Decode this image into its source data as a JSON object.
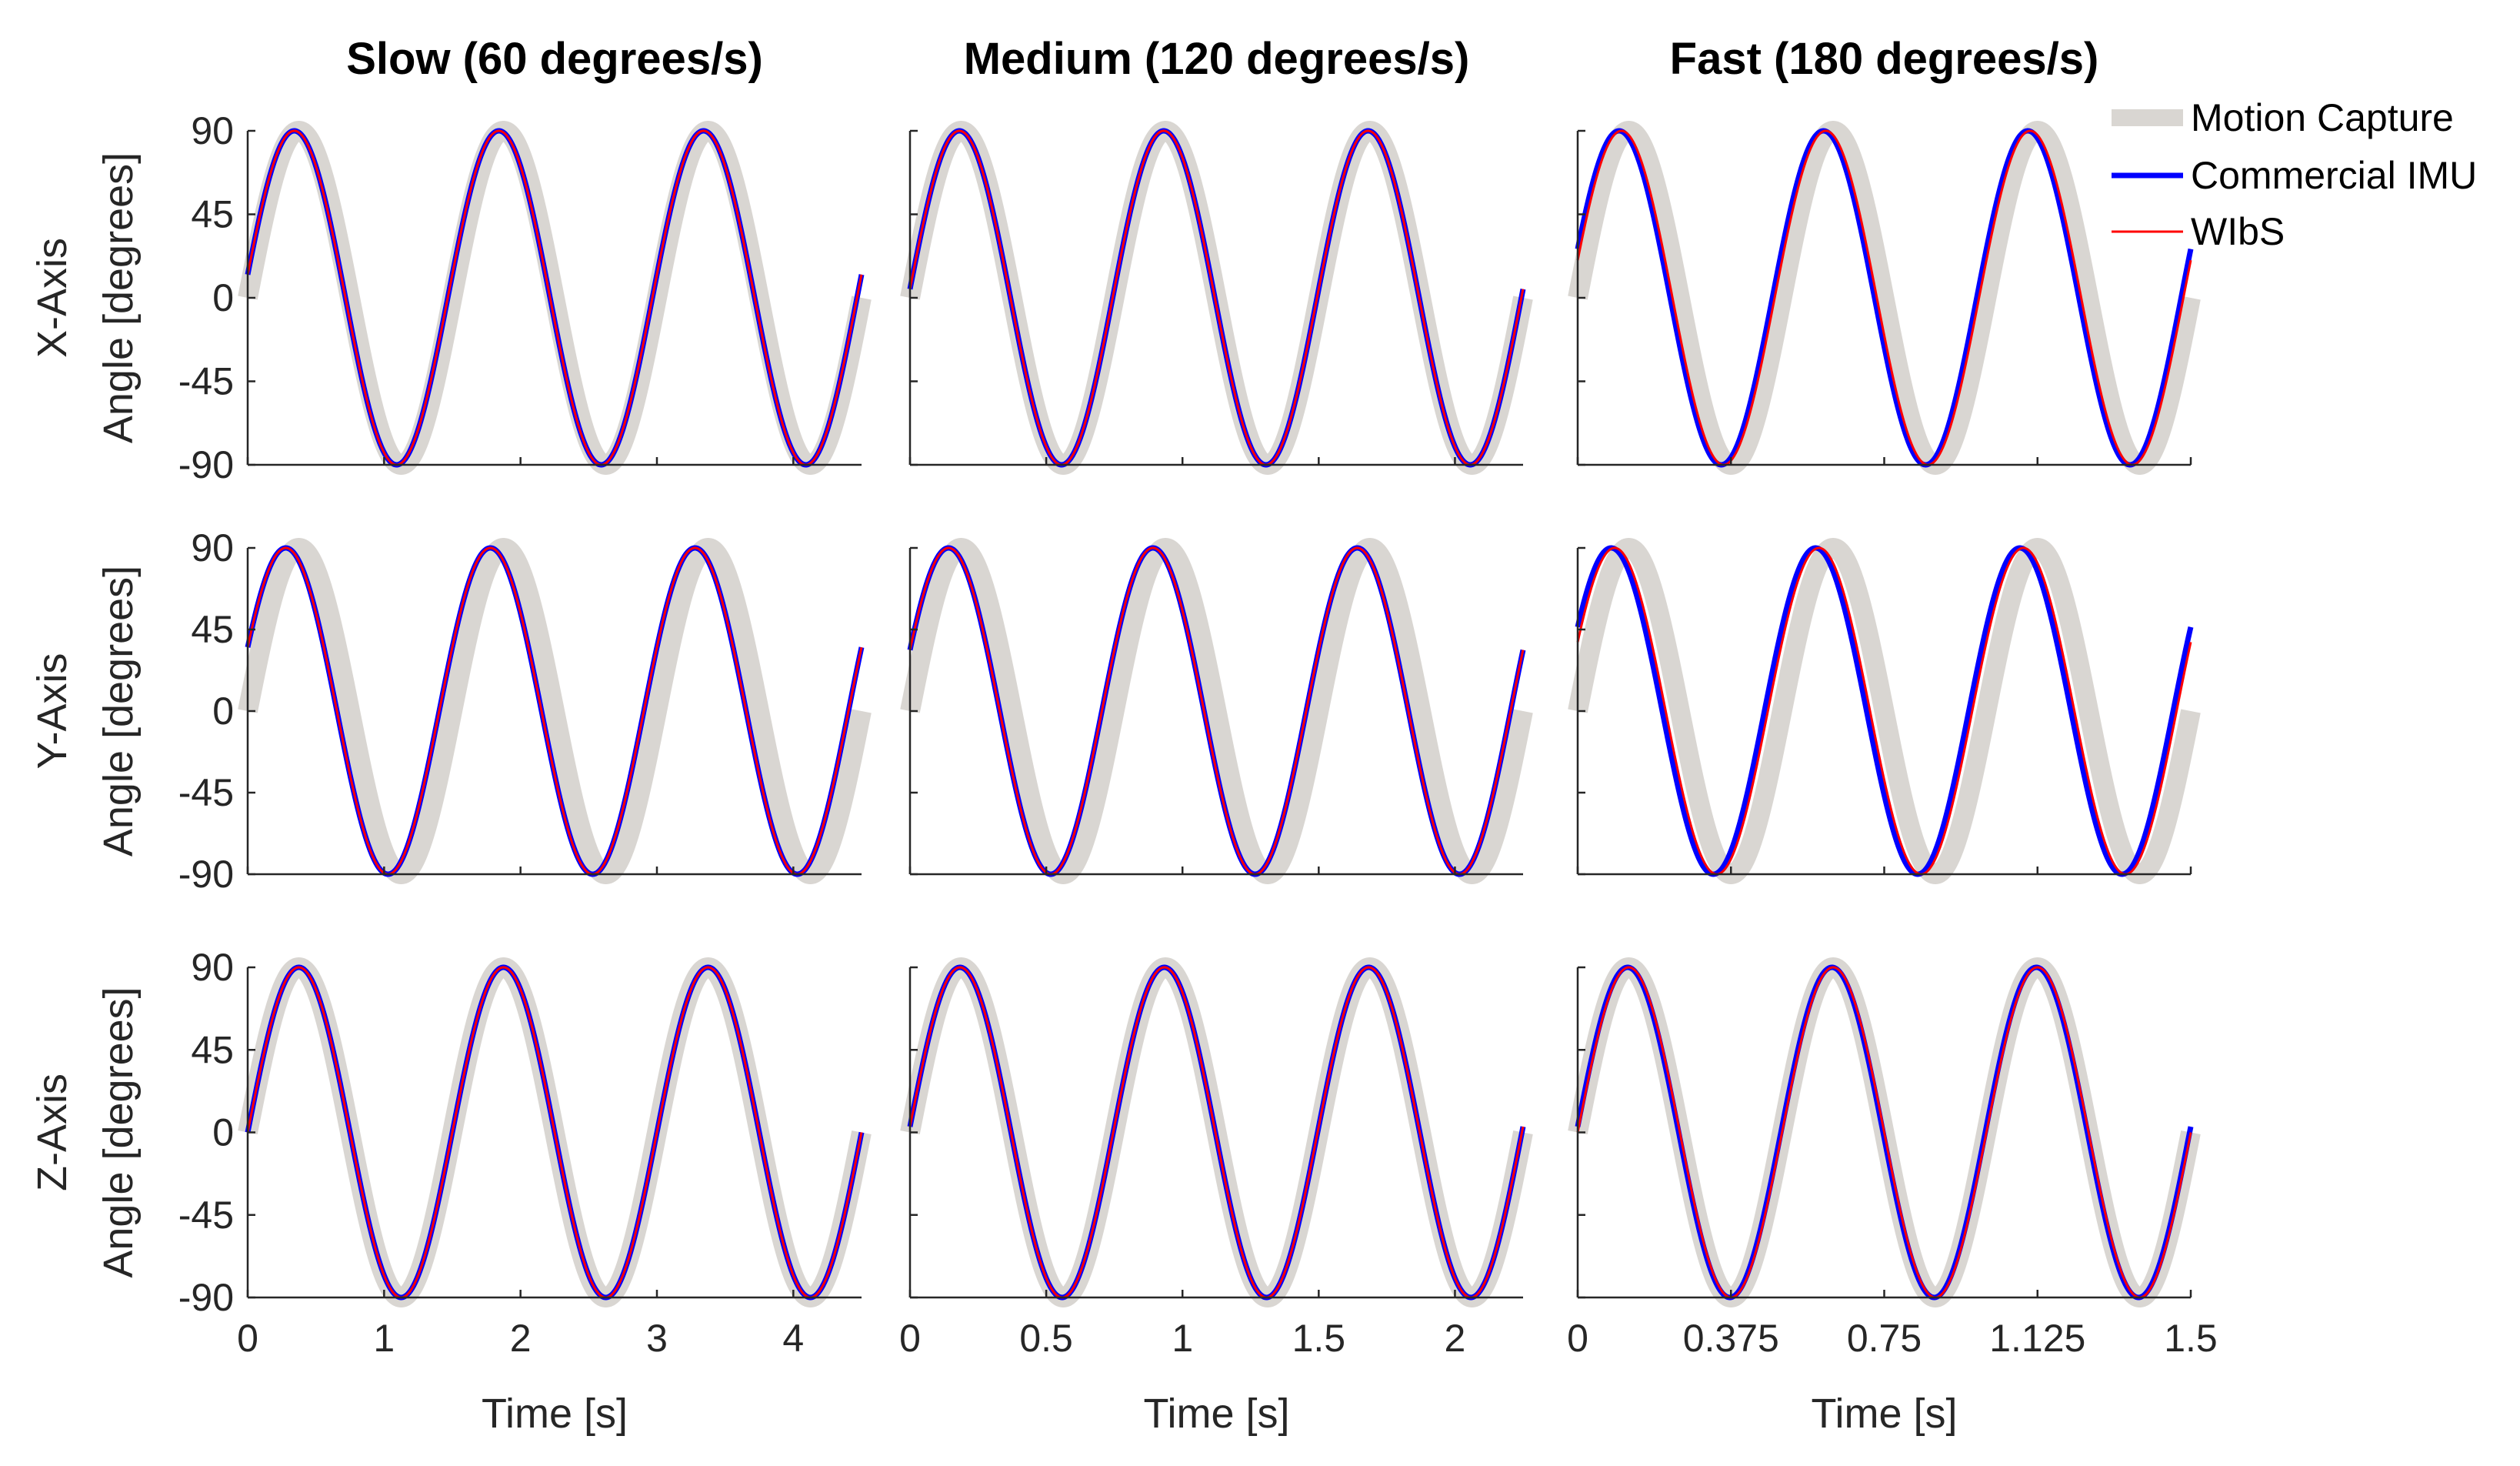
{
  "chart_data": {
    "type": "line",
    "layout": "3x3 grid of line plots",
    "column_titles": [
      "Slow (60 degrees/s)",
      "Medium (120 degrees/s)",
      "Fast (180 degrees/s)"
    ],
    "row_labels": [
      "X-Axis",
      "Y-Axis",
      "Z-Axis"
    ],
    "ylabel": "Angle [degrees]",
    "xlabel": "Time [s]",
    "ylim": [
      -90,
      90
    ],
    "yticks": [
      90,
      45,
      0,
      -45,
      -90
    ],
    "columns": [
      {
        "xlim": [
          0,
          4.5
        ],
        "xticks": [
          0,
          1,
          2,
          3,
          4
        ],
        "xtick_labels": [
          "0",
          "1",
          "2",
          "3",
          "4"
        ],
        "period": 1.5
      },
      {
        "xlim": [
          0,
          2.25
        ],
        "xticks": [
          0,
          0.5,
          1,
          1.5,
          2
        ],
        "xtick_labels": [
          "0",
          "0.5",
          "1",
          "1.5",
          "2"
        ],
        "period": 0.75
      },
      {
        "xlim": [
          0,
          1.5
        ],
        "xticks": [
          0,
          0.375,
          0.75,
          1.125,
          1.5
        ],
        "xtick_labels": [
          "0",
          "0.375",
          "0.75",
          "1.125",
          "1.5"
        ],
        "period": 0.5
      }
    ],
    "series": [
      {
        "name": "Motion Capture",
        "color": "#d9d6d2"
      },
      {
        "name": "Commercial IMU",
        "color": "#0000ff"
      },
      {
        "name": "WIbS",
        "color": "#ff0000"
      }
    ],
    "legend_placement": "top-right",
    "grid": false,
    "signal": "sinusoid, amplitude 90 degrees, 3 cycles per panel",
    "phase_deg": {
      "Motion Capture": [
        [
          0,
          0,
          0
        ],
        [
          0,
          0,
          0
        ],
        [
          0,
          0,
          0
        ]
      ],
      "Commercial IMU": [
        [
          8,
          3,
          17
        ],
        [
          23,
          22,
          31
        ],
        [
          0,
          2,
          2
        ]
      ],
      "WIbS": [
        [
          8,
          3,
          13
        ],
        [
          23,
          22,
          25
        ],
        [
          0,
          2,
          0
        ]
      ]
    }
  }
}
